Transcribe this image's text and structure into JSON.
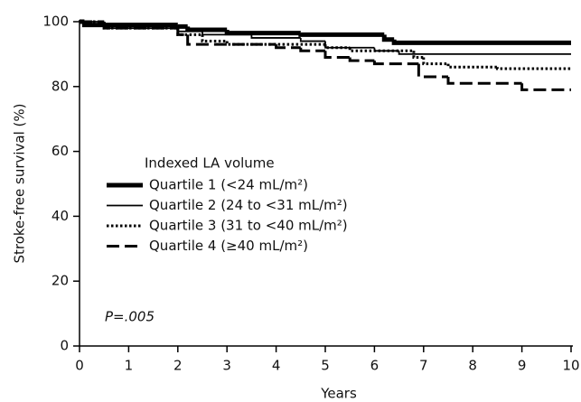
{
  "chart_data": {
    "type": "step",
    "xlabel": "Years",
    "ylabel": "Stroke-free survival (%)",
    "legend_title": "Indexed LA volume",
    "annotation": "P=.005",
    "xlim": [
      0,
      10
    ],
    "xticks": [
      0,
      1,
      2,
      3,
      4,
      5,
      6,
      7,
      8,
      9,
      10
    ],
    "ylim": [
      0,
      100
    ],
    "yticks": [
      0,
      20,
      40,
      60,
      80,
      100
    ],
    "series": [
      {
        "name": "Quartile 1 (<24 mL/m²)",
        "color": "#000000",
        "linestyle": "solid",
        "linewidth": 5,
        "x": [
          0,
          0.1,
          2,
          2.2,
          3,
          4.5,
          6.2,
          6.4,
          10
        ],
        "values": [
          100,
          99,
          98.5,
          97.5,
          96.5,
          96,
          94.5,
          93.5,
          93.5
        ]
      },
      {
        "name": "Quartile 2 (24 to <31 mL/m²)",
        "color": "#000000",
        "linestyle": "solid",
        "linewidth": 1.8,
        "x": [
          0,
          0.5,
          2,
          2.5,
          3.5,
          4.5,
          5,
          6,
          6.5,
          10
        ],
        "values": [
          100,
          98,
          97,
          96,
          95,
          94,
          92,
          91,
          90,
          90
        ]
      },
      {
        "name": "Quartile 3 (31 to <40 mL/m²)",
        "color": "#000000",
        "linestyle": "dotted",
        "linewidth": 3,
        "x": [
          0,
          0.5,
          2,
          2.5,
          3,
          5,
          5.5,
          6.8,
          7,
          7.5,
          8.5,
          10
        ],
        "values": [
          100,
          98,
          96,
          94,
          93,
          92,
          91,
          89,
          87,
          86,
          85.5,
          85.5
        ]
      },
      {
        "name": "Quartile 4 (≥40 mL/m²)",
        "color": "#000000",
        "linestyle": "dashed",
        "linewidth": 3,
        "x": [
          0,
          0.5,
          2,
          2.2,
          4,
          4.5,
          5,
          5.5,
          6,
          6.9,
          7.5,
          9,
          10
        ],
        "values": [
          100,
          98,
          96,
          93,
          92,
          91,
          89,
          88,
          87,
          83,
          81,
          79,
          79
        ]
      }
    ]
  }
}
